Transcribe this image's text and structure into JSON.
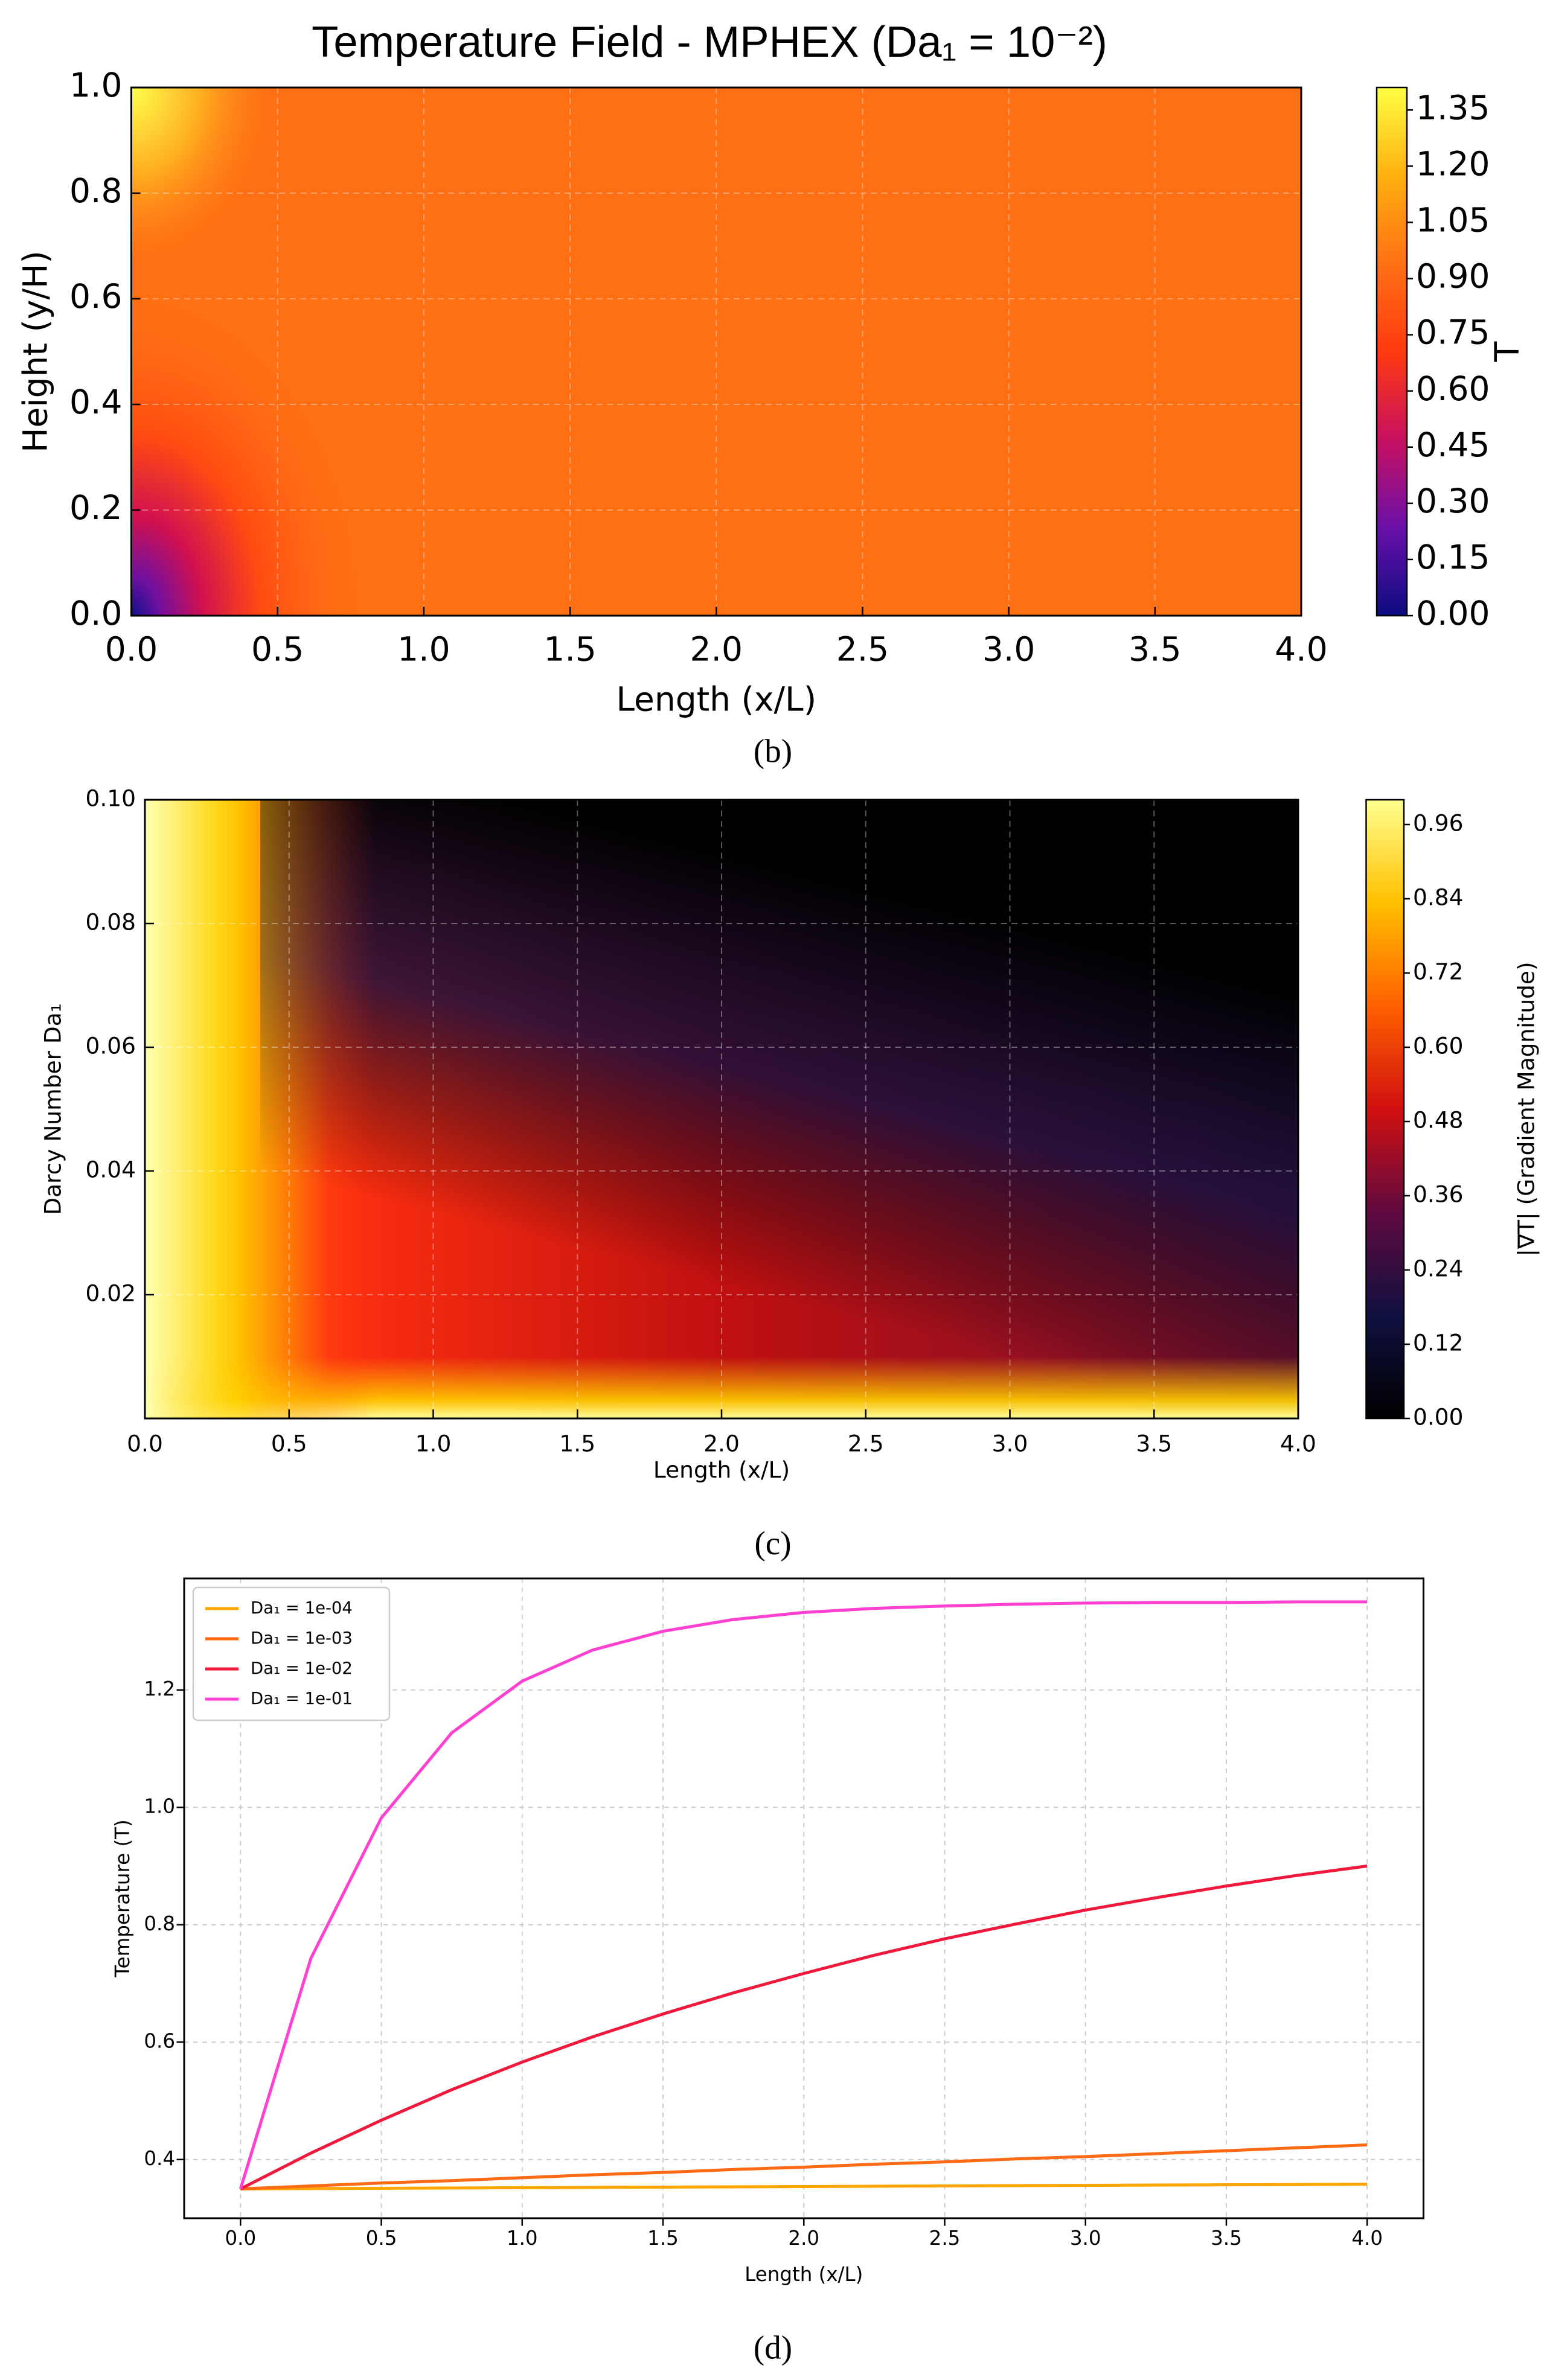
{
  "chart_data": [
    {
      "type": "heatmap",
      "title": "Temperature Field - MPHEX (Da₁ = 10⁻²)",
      "xlabel": "Length (x/L)",
      "ylabel": "Height (y/H)",
      "colorbar_label": "T",
      "caption": "(b)",
      "xlim": [
        0,
        4
      ],
      "ylim": [
        0,
        1
      ],
      "clim": [
        0,
        1.41
      ],
      "grid": true,
      "xticks": [
        {
          "value": 0,
          "label": "0.0"
        },
        0.5,
        {
          "value": 1,
          "label": "1.0"
        },
        1.5,
        {
          "value": 2,
          "label": "2.0"
        },
        2.5,
        {
          "value": 3,
          "label": "3.0"
        },
        3.5,
        {
          "value": 4,
          "label": "4.0"
        }
      ],
      "yticks": [
        {
          "value": 0,
          "label": "0.0"
        },
        0.2,
        0.4,
        0.6,
        0.8,
        {
          "value": 1,
          "label": "1.0"
        }
      ],
      "cticks": [
        {
          "value": 0,
          "label": "0.00"
        },
        0.15,
        {
          "value": 0.3,
          "label": "0.30"
        },
        0.45,
        {
          "value": 0.6,
          "label": "0.60"
        },
        0.75,
        {
          "value": 0.9,
          "label": "0.90"
        },
        1.05,
        {
          "value": 1.2,
          "label": "1.20"
        },
        1.35
      ],
      "colorscale": [
        "#0c0c80",
        "#6a10a8",
        "#c81060",
        "#ff3a10",
        "#ff7014",
        "#ffb010",
        "#ffff40"
      ]
    },
    {
      "type": "heatmap",
      "xlabel": "Length (x/L)",
      "ylabel": "Darcy Number Da₁",
      "colorbar_label": "|∇T| (Gradient Magnitude)",
      "caption": "(c)",
      "xlim": [
        0,
        4
      ],
      "ylim": [
        0,
        0.1
      ],
      "clim": [
        0,
        1.0
      ],
      "grid": true,
      "xticks": [
        {
          "value": 0,
          "label": "0.0"
        },
        0.5,
        {
          "value": 1,
          "label": "1.0"
        },
        1.5,
        {
          "value": 2,
          "label": "2.0"
        },
        2.5,
        {
          "value": 3,
          "label": "3.0"
        },
        3.5,
        {
          "value": 4,
          "label": "4.0"
        }
      ],
      "yticks": [
        0.02,
        0.04,
        0.06,
        0.08,
        {
          "value": 0.1,
          "label": "0.10"
        }
      ],
      "cticks": [
        {
          "value": 0,
          "label": "0.00"
        },
        0.12,
        0.24,
        0.36,
        0.48,
        {
          "value": 0.6,
          "label": "0.60"
        },
        0.72,
        0.84,
        0.96
      ],
      "colorscale": [
        "#000000",
        "#101040",
        "#600a40",
        "#d01010",
        "#ff6000",
        "#ffc000",
        "#ffff90"
      ]
    },
    {
      "type": "line",
      "xlabel": "Length (x/L)",
      "ylabel": "Temperature (T)",
      "caption": "(d)",
      "xlim": [
        -0.2,
        4.2
      ],
      "ylim": [
        0.3,
        1.39
      ],
      "grid": true,
      "legend": "upper left",
      "xticks": [
        {
          "value": 0,
          "label": "0.0"
        },
        0.5,
        {
          "value": 1,
          "label": "1.0"
        },
        1.5,
        {
          "value": 2,
          "label": "2.0"
        },
        2.5,
        {
          "value": 3,
          "label": "3.0"
        },
        3.5,
        {
          "value": 4,
          "label": "4.0"
        }
      ],
      "yticks": [
        0.4,
        0.6,
        0.8,
        {
          "value": 1,
          "label": "1.0"
        },
        1.2
      ],
      "x": [
        0,
        0.25,
        0.5,
        0.75,
        1,
        1.25,
        1.5,
        1.75,
        2,
        2.25,
        2.5,
        2.75,
        3,
        3.25,
        3.5,
        3.75,
        4
      ],
      "series": [
        {
          "name": "Da₁ = 1e-04",
          "color": "#ffa500",
          "values": [
            0.35,
            0.3505,
            0.351,
            0.3515,
            0.352,
            0.3525,
            0.353,
            0.3535,
            0.354,
            0.3545,
            0.355,
            0.3555,
            0.356,
            0.3565,
            0.357,
            0.3575,
            0.358
          ]
        },
        {
          "name": "Da₁ = 1e-03",
          "color": "#ff6a14",
          "values": [
            0.35,
            0.355,
            0.36,
            0.364,
            0.369,
            0.374,
            0.378,
            0.383,
            0.387,
            0.392,
            0.396,
            0.401,
            0.405,
            0.41,
            0.415,
            0.42,
            0.425
          ]
        },
        {
          "name": "Da₁ = 1e-02",
          "color": "#f0193c",
          "values": [
            0.35,
            0.411,
            0.467,
            0.519,
            0.566,
            0.609,
            0.648,
            0.684,
            0.717,
            0.748,
            0.776,
            0.801,
            0.825,
            0.846,
            0.866,
            0.884,
            0.9
          ]
        },
        {
          "name": "Da₁ = 1e-01",
          "color": "#ff40d0",
          "values": [
            0.35,
            0.743,
            0.982,
            1.127,
            1.215,
            1.268,
            1.3,
            1.32,
            1.332,
            1.339,
            1.343,
            1.346,
            1.348,
            1.349,
            1.349,
            1.35,
            1.35
          ]
        }
      ]
    }
  ]
}
